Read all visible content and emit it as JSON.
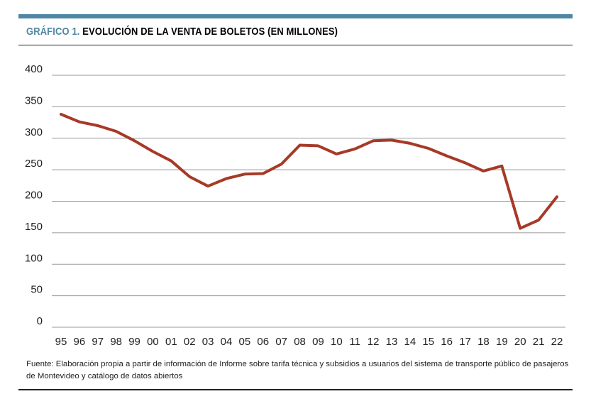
{
  "header": {
    "prefix": "GRÁFICO 1.",
    "title": "EVOLUCIÓN DE LA VENTA DE BOLETOS (EN MILLONES)"
  },
  "colors": {
    "accent": "#4f86a3",
    "line": "#a63a27",
    "grid": "#9a9a9a"
  },
  "chart_data": {
    "type": "line",
    "title": "EVOLUCIÓN DE LA VENTA DE BOLETOS (EN MILLONES)",
    "xlabel": "",
    "ylabel": "",
    "ylim": [
      0,
      400
    ],
    "yticks": [
      "0",
      "50",
      "100",
      "150",
      "200",
      "250",
      "300",
      "350",
      "400"
    ],
    "grid": true,
    "categories": [
      "95",
      "96",
      "97",
      "98",
      "99",
      "00",
      "01",
      "02",
      "03",
      "04",
      "05",
      "06",
      "07",
      "08",
      "09",
      "10",
      "11",
      "12",
      "13",
      "14",
      "15",
      "16",
      "17",
      "18",
      "19",
      "20",
      "21",
      "22"
    ],
    "series": [
      {
        "name": "Venta de boletos",
        "values": [
          338,
          326,
          320,
          311,
          296,
          279,
          264,
          239,
          224,
          236,
          243,
          244,
          259,
          289,
          288,
          275,
          283,
          296,
          297,
          292,
          284,
          272,
          261,
          248,
          256,
          157,
          170,
          207
        ]
      }
    ]
  },
  "source": {
    "text": "Fuente: Elaboración propia a partir de información de Informe sobre tarifa técnica y subsidios a usuarios del sistema de transporte público de pasajeros de Montevideo y catálogo de datos abiertos"
  }
}
